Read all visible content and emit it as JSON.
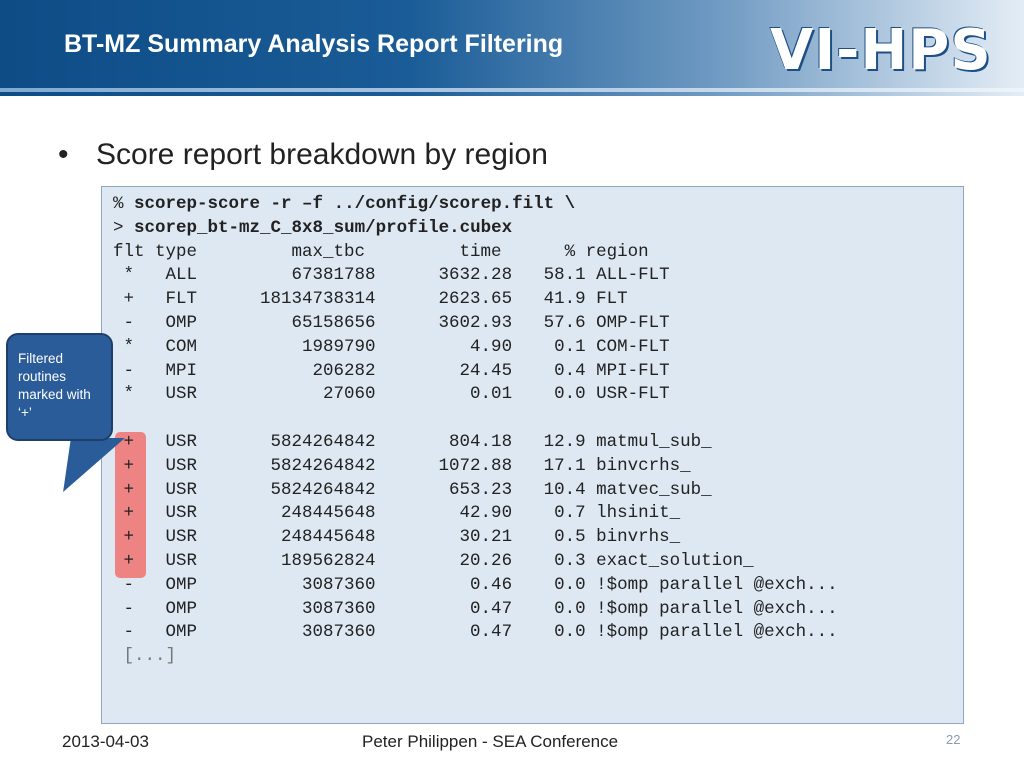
{
  "header": {
    "title": "BT-MZ Summary Analysis Report Filtering",
    "logo_text": "VI-HPS"
  },
  "bullet": "Score report breakdown by region",
  "code": {
    "cmd1_prompt": "%",
    "cmd1": "scorep-score -r –f ../config/scorep.filt \\",
    "cmd2_prompt": ">",
    "cmd2": "scorep_bt-mz_C_8x8_sum/profile.cubex",
    "header_row": "flt type         max_tbc         time      % region",
    "rows": [
      " *   ALL         67381788      3632.28   58.1 ALL-FLT",
      " +   FLT      18134738314      2623.65   41.9 FLT",
      " -   OMP         65158656      3602.93   57.6 OMP-FLT",
      " *   COM          1989790         4.90    0.1 COM-FLT",
      " -   MPI           206282        24.45    0.4 MPI-FLT",
      " *   USR            27060         0.01    0.0 USR-FLT"
    ],
    "rows2": [
      " +   USR       5824264842       804.18   12.9 matmul_sub_",
      " +   USR       5824264842      1072.88   17.1 binvcrhs_",
      " +   USR       5824264842       653.23   10.4 matvec_sub_",
      " +   USR        248445648        42.90    0.7 lhsinit_",
      " +   USR        248445648        30.21    0.5 binvrhs_",
      " +   USR        189562824        20.26    0.3 exact_solution_",
      " -   OMP          3087360         0.46    0.0 !$omp parallel @exch...",
      " -   OMP          3087360         0.47    0.0 !$omp parallel @exch...",
      " -   OMP          3087360         0.47    0.0 !$omp parallel @exch..."
    ],
    "ellipsis": " [...]"
  },
  "callout": {
    "text": "Filtered routines marked with ‘+’"
  },
  "footer": {
    "date": "2013-04-03",
    "center": "Peter Philippen - SEA Conference",
    "page": "22"
  },
  "colors": {
    "header_dark": "#0e4c86",
    "code_bg": "#dde8f3",
    "callout_bg": "#2b5c9a",
    "highlight": "#ee8383"
  }
}
